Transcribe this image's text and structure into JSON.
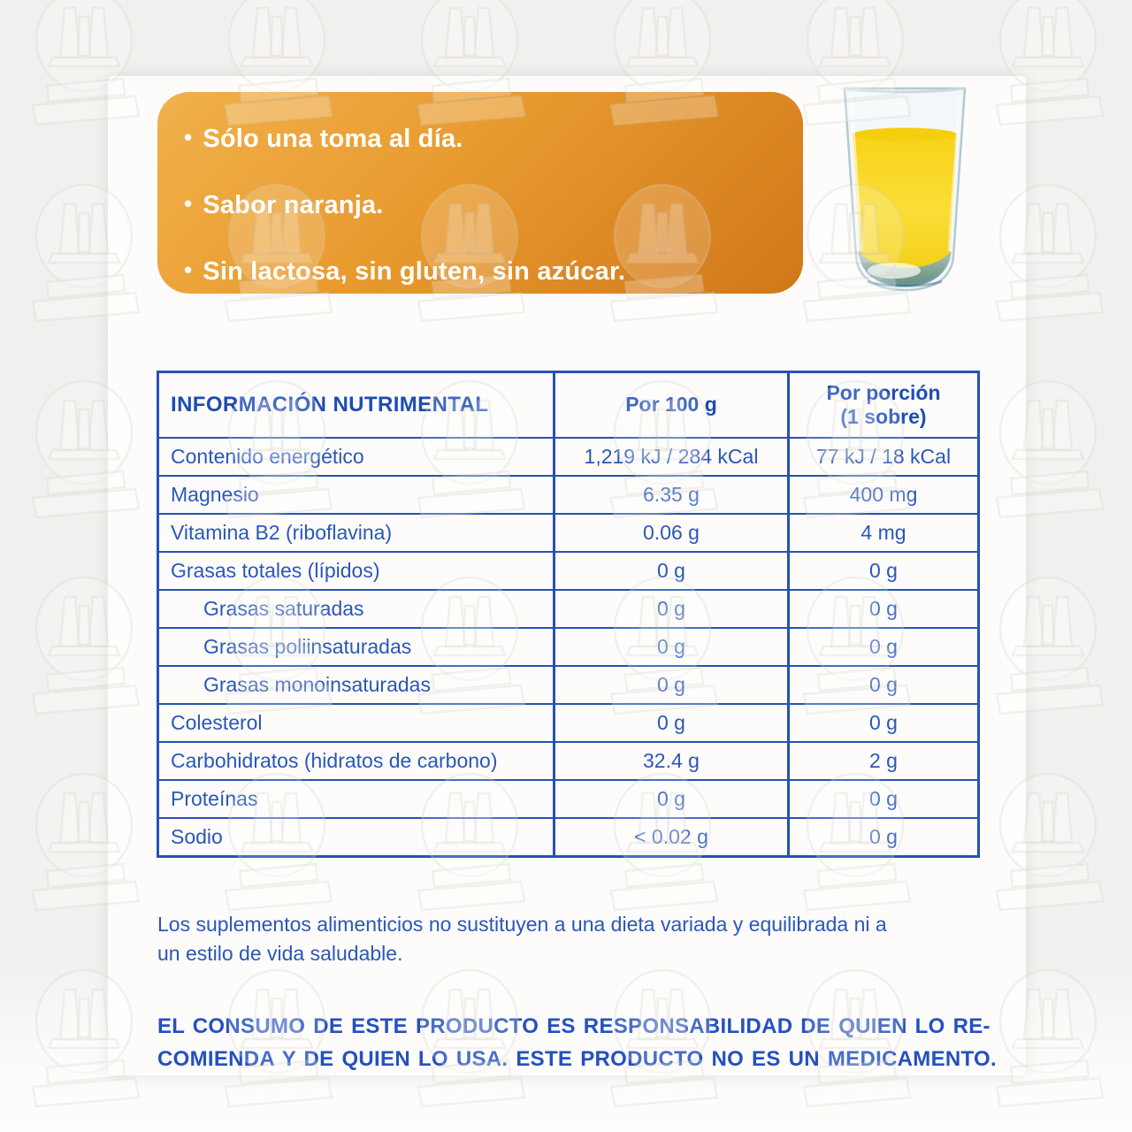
{
  "panel": {
    "marker": "•",
    "bullets": [
      "Sólo una toma al día.",
      "Sabor naranja.",
      "Sin lactosa, sin gluten, sin azúcar."
    ]
  },
  "table": {
    "header": {
      "title": "INFORMACIÓN NUTRIMENTAL",
      "per_100g": "Por 100 g",
      "per_portion_line1": "Por porción",
      "per_portion_line2": "(1 sobre)"
    },
    "rows": [
      {
        "label": "Contenido energético",
        "per100": "1,219 kJ / 284 kCal",
        "portion": "77 kJ / 18 kCal",
        "indent": false
      },
      {
        "label": "Magnesio",
        "per100": "6.35 g",
        "portion": "400 mg",
        "indent": false
      },
      {
        "label": "Vitamina B2 (riboflavina)",
        "per100": "0.06 g",
        "portion": "4 mg",
        "indent": false
      },
      {
        "label": "Grasas totales (lípidos)",
        "per100": "0 g",
        "portion": "0 g",
        "indent": false
      },
      {
        "label": "Grasas saturadas",
        "per100": "0 g",
        "portion": "0 g",
        "indent": true
      },
      {
        "label": "Grasas poliinsaturadas",
        "per100": "0 g",
        "portion": "0 g",
        "indent": true
      },
      {
        "label": "Grasas monoinsaturadas",
        "per100": "0 g",
        "portion": "0 g",
        "indent": true
      },
      {
        "label": "Colesterol",
        "per100": "0 g",
        "portion": "0 g",
        "indent": false
      },
      {
        "label": "Carbohidratos (hidratos de carbono)",
        "per100": "32.4 g",
        "portion": "2 g",
        "indent": false
      },
      {
        "label": "Proteínas",
        "per100": "0 g",
        "portion": "0 g",
        "indent": false
      },
      {
        "label": "Sodio",
        "per100": "< 0.02 g",
        "portion": "0 g",
        "indent": false
      }
    ]
  },
  "notes": {
    "supplement_note": "Los suplementos alimenticios no sustituyen a una dieta variada y equilibrada ni a\nun estilo de vida saludable.",
    "disclaimer": "EL CONSUMO DE ESTE PRODUCTO ES RESPONSABILIDAD DE QUIEN LO RE-\nCOMIENDA Y DE QUIEN LO USA. ESTE PRODUCTO NO ES UN MEDICAMENTO."
  },
  "colors": {
    "accent_orange_light": "#f1b14b",
    "accent_orange_dark": "#d0771a",
    "brand_blue": "#2452b6",
    "juice_yellow": "#f8d61e"
  }
}
